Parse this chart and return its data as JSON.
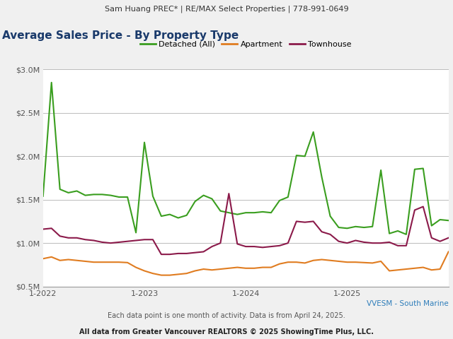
{
  "header": "Sam Huang PREC* | RE/MAX Select Properties | 778-991-0649",
  "title": "Average Sales Price - By Property Type",
  "subtitle_region": "VVESM - South Marine",
  "footer1": "Each data point is one month of activity. Data is from April 24, 2025.",
  "footer2": "All data from Greater Vancouver REALTORS © 2025 ShowingTime Plus, LLC.",
  "legend": [
    "Detached (All)",
    "Apartment",
    "Townhouse"
  ],
  "colors": {
    "detached": "#3a9e1f",
    "apartment": "#e07c20",
    "townhouse": "#8b1a4a"
  },
  "x_labels": [
    "1-2022",
    "1-2023",
    "1-2024",
    "1-2025"
  ],
  "ylim": [
    500000,
    3000000
  ],
  "yticks": [
    500000,
    1000000,
    1500000,
    2000000,
    2500000,
    3000000
  ],
  "ytick_labels": [
    "$0.5M",
    "$1.0M",
    "$1.5M",
    "$2.0M",
    "$2.5M",
    "$3.0M"
  ],
  "detached": [
    1540000,
    2850000,
    1620000,
    1580000,
    1600000,
    1550000,
    1560000,
    1560000,
    1550000,
    1530000,
    1530000,
    1120000,
    2160000,
    1540000,
    1310000,
    1330000,
    1290000,
    1320000,
    1480000,
    1550000,
    1510000,
    1370000,
    1350000,
    1330000,
    1350000,
    1350000,
    1360000,
    1350000,
    1490000,
    1530000,
    2010000,
    2000000,
    2280000,
    1760000,
    1310000,
    1180000,
    1170000,
    1190000,
    1180000,
    1190000,
    1840000,
    1110000,
    1140000,
    1100000,
    1850000,
    1860000,
    1200000,
    1270000,
    1260000
  ],
  "apartment": [
    820000,
    840000,
    800000,
    810000,
    800000,
    790000,
    780000,
    780000,
    780000,
    780000,
    775000,
    720000,
    680000,
    650000,
    630000,
    630000,
    640000,
    650000,
    680000,
    700000,
    690000,
    700000,
    710000,
    720000,
    710000,
    710000,
    720000,
    720000,
    760000,
    780000,
    780000,
    770000,
    800000,
    810000,
    800000,
    790000,
    780000,
    780000,
    775000,
    770000,
    790000,
    680000,
    690000,
    700000,
    710000,
    720000,
    690000,
    700000,
    900000
  ],
  "townhouse": [
    1160000,
    1170000,
    1080000,
    1060000,
    1060000,
    1040000,
    1030000,
    1010000,
    1000000,
    1010000,
    1020000,
    1030000,
    1040000,
    1040000,
    870000,
    870000,
    880000,
    880000,
    890000,
    900000,
    960000,
    1000000,
    1570000,
    990000,
    960000,
    960000,
    950000,
    960000,
    970000,
    1000000,
    1250000,
    1240000,
    1250000,
    1130000,
    1100000,
    1020000,
    1000000,
    1030000,
    1010000,
    1000000,
    1000000,
    1010000,
    970000,
    970000,
    1380000,
    1420000,
    1060000,
    1020000,
    1060000
  ],
  "header_bg": "#e8e8e8",
  "plot_bg": "#ffffff",
  "fig_bg": "#f0f0f0",
  "header_fontsize": 8,
  "title_fontsize": 11,
  "legend_fontsize": 8,
  "tick_fontsize": 8,
  "footer_fontsize": 7,
  "region_fontsize": 7.5,
  "line_width": 1.5
}
